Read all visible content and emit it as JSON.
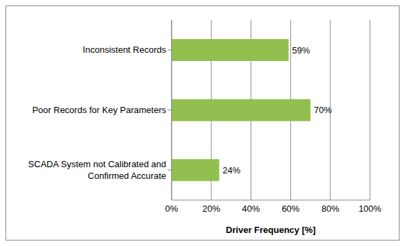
{
  "chart_data": {
    "type": "bar",
    "orientation": "horizontal",
    "categories": [
      "Inconsistent Records",
      "Poor Records for Key Parameters",
      "SCADA System not Calibrated and Confirmed Accurate"
    ],
    "values": [
      59,
      70,
      24
    ],
    "value_labels": [
      "59%",
      "70%",
      "24%"
    ],
    "data_labels": true,
    "color": "#92c050",
    "xlabel": "Driver Frequency [%]",
    "xlim": [
      0,
      100
    ],
    "xticks": [
      {
        "value": 0,
        "label": "0%"
      },
      {
        "value": 20,
        "label": "20%"
      },
      {
        "value": 40,
        "label": "40%"
      },
      {
        "value": 60,
        "label": "60%"
      },
      {
        "value": 80,
        "label": "80%"
      },
      {
        "value": 100,
        "label": "100%"
      }
    ],
    "grid": true
  }
}
